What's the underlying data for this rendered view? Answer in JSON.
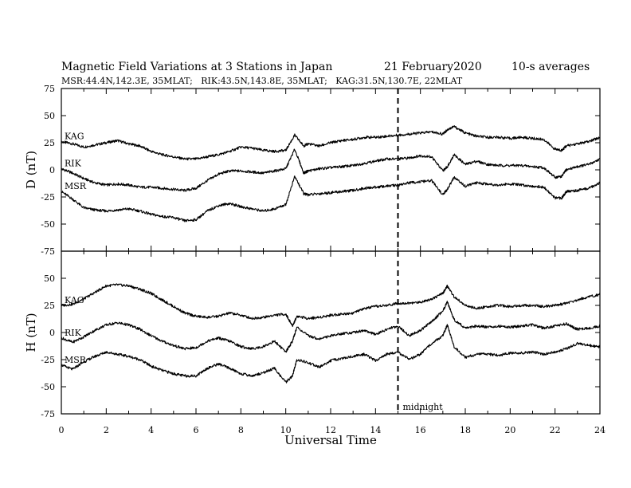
{
  "chart_data": {
    "type": "line",
    "title": "Magnetic Field Variations at 3 Stations in Japan",
    "date": "21 February2020",
    "averaging": "10-s averages",
    "subtitle": "MSR:44.4N,142.3E, 35MLAT;   RIK:43.5N,143.8E, 35MLAT;   KAG:31.5N,130.7E, 22MLAT",
    "xlabel": "Universal Time",
    "xlim": [
      0,
      24
    ],
    "xticks": [
      "0",
      "2",
      "4",
      "6",
      "8",
      "10",
      "12",
      "14",
      "16",
      "18",
      "20",
      "22",
      "24"
    ],
    "xtick_values": [
      0,
      2,
      4,
      6,
      8,
      10,
      12,
      14,
      16,
      18,
      20,
      22,
      24
    ],
    "annotation": {
      "x": 15,
      "label": "midnight"
    },
    "panels": [
      {
        "id": "D",
        "ylabel": "D (nT)",
        "ylim": [
          -75,
          75
        ],
        "yticks": [
          "75",
          "50",
          "25",
          "0",
          "-25",
          "-50",
          "-75"
        ],
        "ytick_values": [
          75,
          50,
          25,
          0,
          -25,
          -50,
          -75
        ],
        "series": [
          {
            "name": "KAG",
            "x": [
              0,
              0.5,
              1,
              1.5,
              2,
              2.5,
              3,
              3.5,
              4,
              4.5,
              5,
              5.5,
              6,
              6.5,
              7,
              7.5,
              8,
              8.5,
              9,
              9.5,
              10,
              10.4,
              10.8,
              11,
              11.5,
              12,
              12.5,
              13,
              13.5,
              14,
              14.5,
              15,
              15.5,
              16,
              16.5,
              17,
              17.2,
              17.5,
              18,
              18.5,
              19,
              19.5,
              20,
              20.5,
              21,
              21.5,
              22,
              22.3,
              22.5,
              23,
              23.5,
              24
            ],
            "y": [
              26,
              24,
              21,
              23,
              25,
              27,
              24,
              22,
              17,
              14,
              12,
              10,
              10,
              12,
              14,
              17,
              21,
              20,
              18,
              17,
              18,
              32,
              22,
              24,
              22,
              25,
              27,
              28,
              30,
              30,
              31,
              32,
              33,
              34,
              35,
              33,
              37,
              40,
              34,
              31,
              30,
              30,
              29,
              30,
              29,
              28,
              19,
              18,
              22,
              24,
              26,
              30
            ]
          },
          {
            "name": "RIK",
            "x": [
              0,
              0.5,
              1,
              1.5,
              2,
              2.5,
              3,
              3.5,
              4,
              4.5,
              5,
              5.5,
              6,
              6.5,
              7,
              7.5,
              8,
              8.5,
              9,
              9.5,
              10,
              10.4,
              10.8,
              11,
              11.5,
              12,
              12.5,
              13,
              13.5,
              14,
              14.5,
              15,
              15.5,
              16,
              16.5,
              17,
              17.2,
              17.5,
              18,
              18.5,
              19,
              19.5,
              20,
              20.5,
              21,
              21.5,
              22,
              22.3,
              22.5,
              23,
              23.5,
              24
            ],
            "y": [
              1,
              -3,
              -8,
              -12,
              -14,
              -13,
              -14,
              -16,
              -16,
              -17,
              -18,
              -19,
              -17,
              -10,
              -4,
              -1,
              -1,
              -2,
              -3,
              -1,
              1,
              19,
              -3,
              -1,
              1,
              2,
              3,
              4,
              6,
              8,
              10,
              10,
              11,
              13,
              12,
              -1,
              3,
              14,
              5,
              8,
              5,
              4,
              4,
              4,
              3,
              2,
              -7,
              -6,
              0,
              3,
              5,
              10
            ]
          },
          {
            "name": "MSR",
            "x": [
              0,
              0.5,
              1,
              1.5,
              2,
              2.5,
              3,
              3.5,
              4,
              4.5,
              5,
              5.5,
              6,
              6.5,
              7,
              7.5,
              8,
              8.5,
              9,
              9.5,
              10,
              10.4,
              10.8,
              11,
              11.5,
              12,
              12.5,
              13,
              13.5,
              14,
              14.5,
              15,
              15.5,
              16,
              16.5,
              17,
              17.2,
              17.5,
              18,
              18.5,
              19,
              19.5,
              20,
              20.5,
              21,
              21.5,
              22,
              22.3,
              22.5,
              23,
              23.5,
              24
            ],
            "y": [
              -20,
              -27,
              -35,
              -37,
              -38,
              -37,
              -36,
              -38,
              -41,
              -43,
              -44,
              -47,
              -46,
              -38,
              -33,
              -31,
              -34,
              -36,
              -38,
              -36,
              -32,
              -6,
              -22,
              -23,
              -22,
              -21,
              -20,
              -19,
              -17,
              -16,
              -15,
              -14,
              -12,
              -11,
              -10,
              -23,
              -18,
              -7,
              -15,
              -12,
              -13,
              -14,
              -13,
              -14,
              -15,
              -16,
              -26,
              -26,
              -20,
              -19,
              -17,
              -12
            ]
          }
        ]
      },
      {
        "id": "H",
        "ylabel": "H (nT)",
        "ylim": [
          -75,
          75
        ],
        "yticks": [
          "50",
          "25",
          "0",
          "-25",
          "-50",
          "-75"
        ],
        "ytick_values": [
          50,
          25,
          0,
          -25,
          -50,
          -75
        ],
        "series": [
          {
            "name": "KAG",
            "x": [
              0,
              0.5,
              1,
              1.5,
              2,
              2.5,
              3,
              3.5,
              4,
              4.5,
              5,
              5.5,
              6,
              6.5,
              7,
              7.5,
              8,
              8.5,
              9,
              9.5,
              10,
              10.3,
              10.5,
              11,
              11.5,
              12,
              12.5,
              13,
              13.5,
              14,
              14.5,
              15,
              15.5,
              16,
              16.5,
              17,
              17.2,
              17.5,
              18,
              18.5,
              19,
              19.5,
              20,
              20.5,
              21,
              21.5,
              22,
              22.5,
              23,
              23.5,
              24
            ],
            "y": [
              25,
              26,
              31,
              37,
              43,
              44,
              43,
              40,
              36,
              30,
              24,
              18,
              15,
              14,
              15,
              18,
              16,
              13,
              14,
              16,
              17,
              6,
              15,
              13,
              14,
              16,
              17,
              18,
              22,
              24,
              25,
              27,
              27,
              28,
              31,
              36,
              43,
              33,
              25,
              22,
              24,
              25,
              24,
              25,
              25,
              24,
              25,
              27,
              30,
              33,
              35
            ]
          },
          {
            "name": "RIK",
            "x": [
              0,
              0.5,
              1,
              1.5,
              2,
              2.5,
              3,
              3.5,
              4,
              4.5,
              5,
              5.5,
              6,
              6.5,
              7,
              7.5,
              8,
              8.5,
              9,
              9.5,
              10,
              10.3,
              10.5,
              11,
              11.5,
              12,
              12.5,
              13,
              13.5,
              14,
              14.5,
              15,
              15.5,
              16,
              16.5,
              17,
              17.2,
              17.5,
              18,
              18.5,
              19,
              19.5,
              20,
              20.5,
              21,
              21.5,
              22,
              22.5,
              23,
              23.5,
              24
            ],
            "y": [
              -5,
              -9,
              -4,
              2,
              7,
              9,
              7,
              3,
              -3,
              -8,
              -12,
              -15,
              -14,
              -8,
              -5,
              -8,
              -13,
              -15,
              -13,
              -8,
              -18,
              -8,
              5,
              -3,
              -6,
              -3,
              -1,
              0,
              2,
              -2,
              3,
              6,
              -3,
              2,
              10,
              20,
              28,
              12,
              4,
              6,
              5,
              6,
              5,
              6,
              7,
              4,
              6,
              8,
              3,
              4,
              6
            ]
          },
          {
            "name": "MSR",
            "x": [
              0,
              0.5,
              1,
              1.5,
              2,
              2.5,
              3,
              3.5,
              4,
              4.5,
              5,
              5.5,
              6,
              6.5,
              7,
              7.5,
              8,
              8.5,
              9,
              9.5,
              10,
              10.3,
              10.5,
              11,
              11.5,
              12,
              12.5,
              13,
              13.5,
              14,
              14.5,
              15,
              15.5,
              16,
              16.5,
              17,
              17.2,
              17.5,
              18,
              18.5,
              19,
              19.5,
              20,
              20.5,
              21,
              21.5,
              22,
              22.5,
              23,
              23.5,
              24
            ],
            "y": [
              -30,
              -34,
              -27,
              -22,
              -18,
              -20,
              -22,
              -25,
              -31,
              -35,
              -38,
              -40,
              -40,
              -33,
              -29,
              -33,
              -38,
              -40,
              -37,
              -33,
              -46,
              -40,
              -25,
              -28,
              -32,
              -26,
              -24,
              -22,
              -20,
              -26,
              -20,
              -18,
              -25,
              -20,
              -10,
              -3,
              7,
              -13,
              -23,
              -20,
              -20,
              -21,
              -19,
              -19,
              -18,
              -20,
              -18,
              -15,
              -10,
              -12,
              -13
            ]
          }
        ]
      }
    ]
  }
}
